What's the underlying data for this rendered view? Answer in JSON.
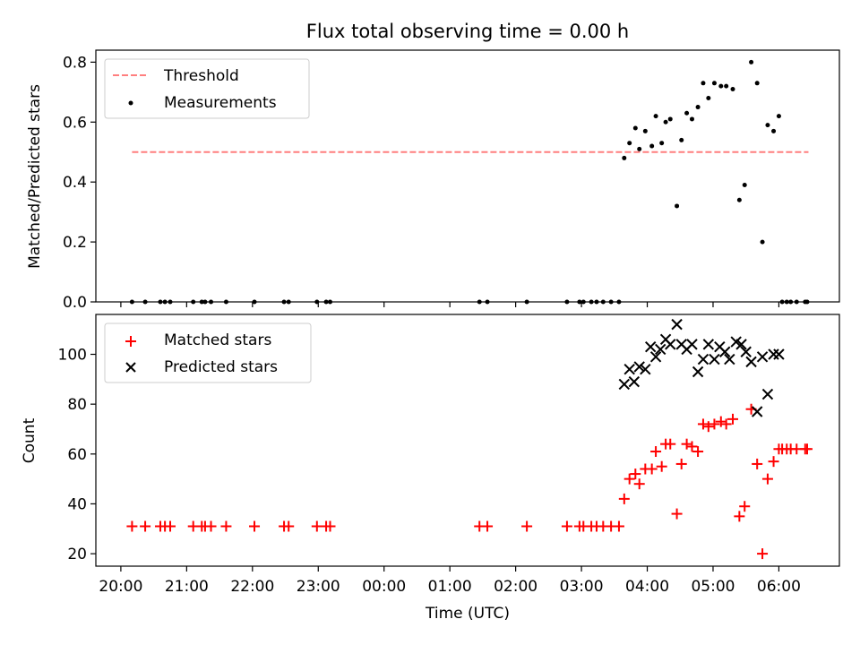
{
  "figure": {
    "title": "Flux total observing time = 0.00 h"
  },
  "x_ticks": [
    "20:00",
    "21:00",
    "22:00",
    "23:00",
    "00:00",
    "01:00",
    "02:00",
    "03:00",
    "04:00",
    "05:00",
    "06:00"
  ],
  "x_tick_hours": [
    20.0,
    21.0,
    22.0,
    23.0,
    24.0,
    25.0,
    26.0,
    27.0,
    28.0,
    29.0,
    30.0
  ],
  "x_axis": {
    "label": "Time (UTC)",
    "hour_range": [
      19.62,
      30.92
    ]
  },
  "chart_data": [
    {
      "type": "scatter",
      "panel": "top",
      "ylabel": "Matched/Predicted stars",
      "ylim": [
        0,
        0.84
      ],
      "y_ticks": [
        "0.0",
        "0.2",
        "0.4",
        "0.6",
        "0.8"
      ],
      "y_tick_values": [
        0.0,
        0.2,
        0.4,
        0.6,
        0.8
      ],
      "legend": {
        "placement": "upper-left"
      },
      "threshold": {
        "name": "Threshold",
        "value": 0.5,
        "x_range": [
          20.17,
          30.45
        ],
        "color": "#ff7f7f",
        "style": "dashed"
      },
      "series": [
        {
          "name": "Measurements",
          "color": "#000000",
          "marker": "dot",
          "points": [
            [
              20.17,
              0.0
            ],
            [
              20.37,
              0.0
            ],
            [
              20.6,
              0.0
            ],
            [
              20.67,
              0.0
            ],
            [
              20.75,
              0.0
            ],
            [
              21.1,
              0.0
            ],
            [
              21.23,
              0.0
            ],
            [
              21.28,
              0.0
            ],
            [
              21.37,
              0.0
            ],
            [
              21.6,
              0.0
            ],
            [
              22.03,
              0.0
            ],
            [
              22.48,
              0.0
            ],
            [
              22.55,
              0.0
            ],
            [
              22.98,
              0.0
            ],
            [
              23.12,
              0.0
            ],
            [
              23.18,
              0.0
            ],
            [
              25.45,
              0.0
            ],
            [
              25.57,
              0.0
            ],
            [
              26.17,
              0.0
            ],
            [
              26.78,
              0.0
            ],
            [
              26.97,
              0.0
            ],
            [
              27.03,
              0.0
            ],
            [
              27.15,
              0.0
            ],
            [
              27.23,
              0.0
            ],
            [
              27.33,
              0.0
            ],
            [
              27.45,
              0.0
            ],
            [
              27.57,
              0.0
            ],
            [
              27.65,
              0.48
            ],
            [
              27.73,
              0.53
            ],
            [
              27.82,
              0.58
            ],
            [
              27.88,
              0.51
            ],
            [
              27.97,
              0.57
            ],
            [
              28.07,
              0.52
            ],
            [
              28.13,
              0.62
            ],
            [
              28.22,
              0.53
            ],
            [
              28.28,
              0.6
            ],
            [
              28.35,
              0.61
            ],
            [
              28.45,
              0.32
            ],
            [
              28.52,
              0.54
            ],
            [
              28.6,
              0.63
            ],
            [
              28.68,
              0.61
            ],
            [
              28.77,
              0.65
            ],
            [
              28.85,
              0.73
            ],
            [
              28.93,
              0.68
            ],
            [
              29.02,
              0.73
            ],
            [
              29.12,
              0.72
            ],
            [
              29.2,
              0.72
            ],
            [
              29.3,
              0.71
            ],
            [
              29.4,
              0.34
            ],
            [
              29.48,
              0.39
            ],
            [
              29.58,
              0.8
            ],
            [
              29.67,
              0.73
            ],
            [
              29.75,
              0.2
            ],
            [
              29.83,
              0.59
            ],
            [
              29.92,
              0.57
            ],
            [
              30.0,
              0.62
            ],
            [
              30.05,
              0.0
            ],
            [
              30.12,
              0.0
            ],
            [
              30.18,
              0.0
            ],
            [
              30.27,
              0.0
            ],
            [
              30.4,
              0.0
            ],
            [
              30.43,
              0.0
            ]
          ]
        }
      ]
    },
    {
      "type": "scatter",
      "panel": "bottom",
      "xlabel": "Time (UTC)",
      "ylabel": "Count",
      "ylim": [
        15,
        116
      ],
      "y_ticks": [
        "20",
        "40",
        "60",
        "80",
        "100"
      ],
      "y_tick_values": [
        20,
        40,
        60,
        80,
        100
      ],
      "legend": {
        "placement": "upper-left"
      },
      "series": [
        {
          "name": "Matched stars",
          "color": "#ff0000",
          "marker": "plus",
          "points": [
            [
              20.17,
              31
            ],
            [
              20.37,
              31
            ],
            [
              20.6,
              31
            ],
            [
              20.67,
              31
            ],
            [
              20.75,
              31
            ],
            [
              21.1,
              31
            ],
            [
              21.23,
              31
            ],
            [
              21.28,
              31
            ],
            [
              21.37,
              31
            ],
            [
              21.6,
              31
            ],
            [
              22.03,
              31
            ],
            [
              22.48,
              31
            ],
            [
              22.55,
              31
            ],
            [
              22.98,
              31
            ],
            [
              23.12,
              31
            ],
            [
              23.18,
              31
            ],
            [
              25.45,
              31
            ],
            [
              25.57,
              31
            ],
            [
              26.17,
              31
            ],
            [
              26.78,
              31
            ],
            [
              26.97,
              31
            ],
            [
              27.03,
              31
            ],
            [
              27.15,
              31
            ],
            [
              27.23,
              31
            ],
            [
              27.33,
              31
            ],
            [
              27.45,
              31
            ],
            [
              27.57,
              31
            ],
            [
              27.65,
              42
            ],
            [
              27.73,
              50
            ],
            [
              27.82,
              52
            ],
            [
              27.88,
              48
            ],
            [
              27.97,
              54
            ],
            [
              28.07,
              54
            ],
            [
              28.13,
              61
            ],
            [
              28.22,
              55
            ],
            [
              28.28,
              64
            ],
            [
              28.35,
              64
            ],
            [
              28.45,
              36
            ],
            [
              28.52,
              56
            ],
            [
              28.6,
              64
            ],
            [
              28.68,
              63
            ],
            [
              28.77,
              61
            ],
            [
              28.85,
              72
            ],
            [
              28.93,
              71
            ],
            [
              29.02,
              72
            ],
            [
              29.12,
              73
            ],
            [
              29.2,
              72
            ],
            [
              29.3,
              74
            ],
            [
              29.4,
              35
            ],
            [
              29.48,
              39
            ],
            [
              29.58,
              78
            ],
            [
              29.67,
              56
            ],
            [
              29.75,
              20
            ],
            [
              29.83,
              50
            ],
            [
              29.92,
              57
            ],
            [
              30.0,
              62
            ],
            [
              30.05,
              62
            ],
            [
              30.12,
              62
            ],
            [
              30.18,
              62
            ],
            [
              30.27,
              62
            ],
            [
              30.4,
              62
            ],
            [
              30.43,
              62
            ]
          ]
        },
        {
          "name": "Predicted stars",
          "color": "#000000",
          "marker": "cross",
          "points": [
            [
              27.65,
              88
            ],
            [
              27.73,
              94
            ],
            [
              27.8,
              89
            ],
            [
              27.88,
              95
            ],
            [
              27.97,
              94
            ],
            [
              28.05,
              103
            ],
            [
              28.13,
              99
            ],
            [
              28.2,
              102
            ],
            [
              28.28,
              106
            ],
            [
              28.35,
              104
            ],
            [
              28.45,
              112
            ],
            [
              28.52,
              104
            ],
            [
              28.6,
              102
            ],
            [
              28.68,
              104
            ],
            [
              28.77,
              93
            ],
            [
              28.85,
              98
            ],
            [
              28.93,
              104
            ],
            [
              29.02,
              98
            ],
            [
              29.1,
              103
            ],
            [
              29.18,
              101
            ],
            [
              29.25,
              98
            ],
            [
              29.35,
              105
            ],
            [
              29.43,
              104
            ],
            [
              29.5,
              101
            ],
            [
              29.58,
              97
            ],
            [
              29.67,
              77
            ],
            [
              29.75,
              99
            ],
            [
              29.83,
              84
            ],
            [
              29.92,
              100
            ],
            [
              30.0,
              100
            ]
          ]
        }
      ]
    }
  ]
}
